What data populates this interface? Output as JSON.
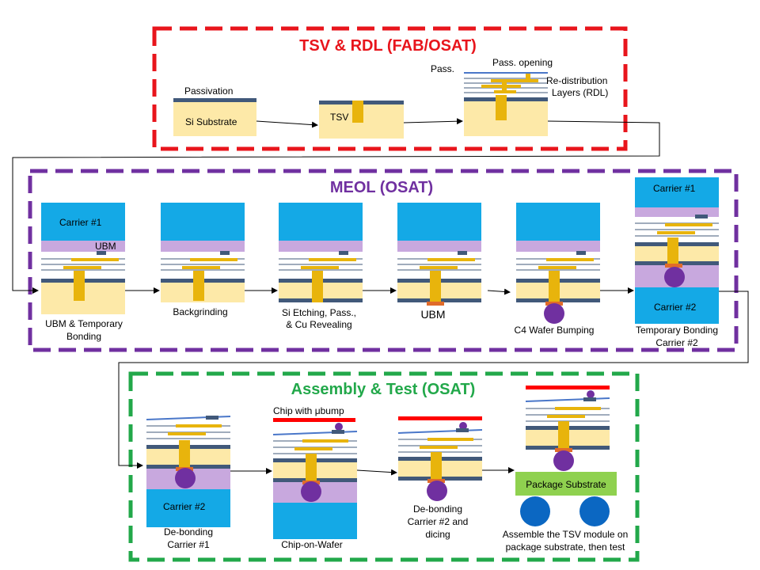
{
  "colors": {
    "fab": "#e8151c",
    "meol": "#7030a0",
    "assembly": "#22a84a",
    "carrier": "#14a9e6",
    "si": "#fde9a8",
    "metal": "#e8b40c",
    "dielectric": "#c8a8de",
    "passivation": "#41597a",
    "bump": "#7030a0",
    "package_substrate": "#8fd14f",
    "ball": "#0b67c2",
    "chip": "#ff0000",
    "ubm": "#e06b2a"
  },
  "sections": {
    "fab": {
      "title": "TSV & RDL (FAB/OSAT)"
    },
    "meol": {
      "title": "MEOL (OSAT)"
    },
    "assembly": {
      "title": "Assembly & Test (OSAT)"
    }
  },
  "fab_labels": {
    "passivation": "Passivation",
    "si_substrate": "Si Substrate",
    "tsv": "TSV",
    "pass": "Pass.",
    "pass_opening": "Pass. opening",
    "rdl_line1": "Re-distribution",
    "rdl_line2": "Layers (RDL)"
  },
  "meol_labels": {
    "carrier1": "Carrier #1",
    "ubm_tag": "UBM",
    "step1_line1": "UBM & Temporary",
    "step1_line2": "Bonding",
    "step2": "Backgrinding",
    "step3_line1": "Si Etching, Pass.,",
    "step3_line2": "& Cu Revealing",
    "step4": "UBM",
    "step5": "C4 Wafer Bumping",
    "carrier1_top": "Carrier #1",
    "carrier2": "Carrier #2",
    "step6_line1": "Temporary Bonding",
    "step6_line2": "Carrier #2"
  },
  "assembly_labels": {
    "carrier2": "Carrier #2",
    "step1_line1": "De-bonding",
    "step1_line2": "Carrier #1",
    "chip_label": "Chip with μbump",
    "step2": "Chip-on-Wafer",
    "step3_line1": "De-bonding",
    "step3_line2": "Carrier #2 and",
    "step3_line3": "dicing",
    "package_substrate": "Package Substrate",
    "step4_line1": "Assemble the TSV module on",
    "step4_line2": "package substrate, then test"
  }
}
